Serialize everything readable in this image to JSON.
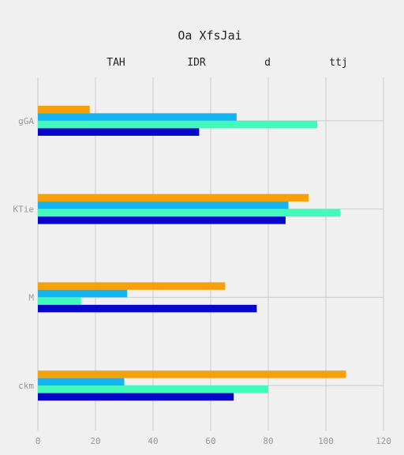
{
  "chart_data": {
    "type": "bar",
    "orientation": "horizontal",
    "title": "Oa XfsJai",
    "categories": [
      "gGA",
      "KTie",
      "M",
      "ckm"
    ],
    "series": [
      {
        "name": "TAH",
        "color": "#f5a10c",
        "values": [
          18,
          94,
          65,
          107
        ]
      },
      {
        "name": "IDR",
        "color": "#12b5f0",
        "values": [
          69,
          87,
          31,
          30
        ]
      },
      {
        "name": "d",
        "color": "#3ffcbc",
        "values": [
          97,
          105,
          15,
          80
        ]
      },
      {
        "name": "ttj",
        "color": "#0606c8",
        "values": [
          56,
          86,
          76,
          68
        ]
      }
    ],
    "xlim": [
      0,
      120
    ],
    "xticks": [
      "0",
      "20",
      "40",
      "60",
      "80",
      "100",
      "120"
    ],
    "grid": true,
    "legend_position": "top"
  }
}
